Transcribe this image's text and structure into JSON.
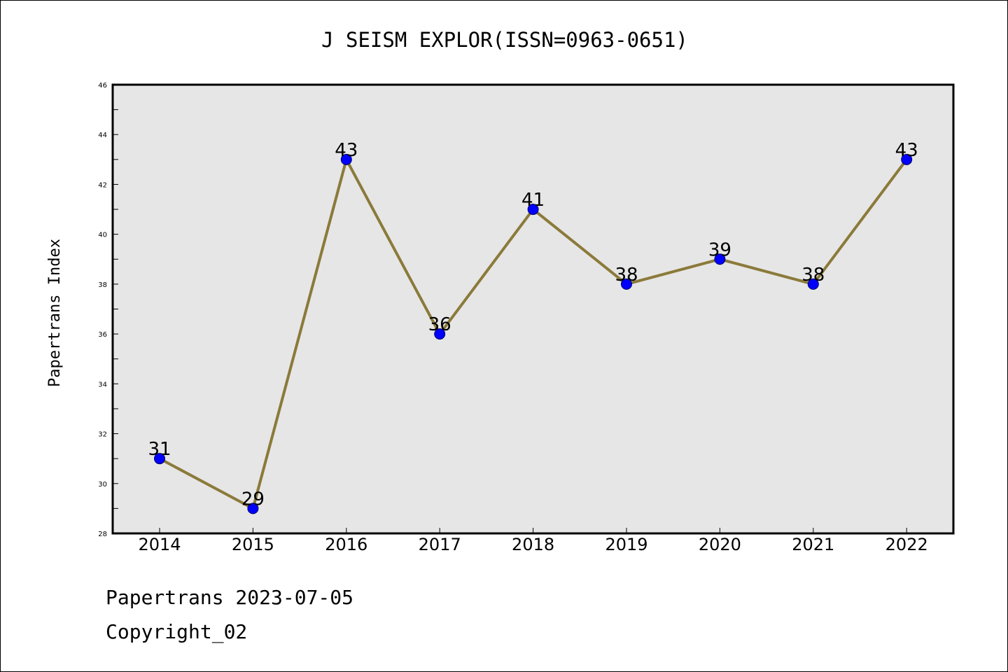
{
  "chart_data": {
    "type": "line",
    "title": "J SEISM EXPLOR(ISSN=0963-0651)",
    "xlabel": "",
    "ylabel": "Papertrans Index",
    "categories": [
      "2014",
      "2015",
      "2016",
      "2017",
      "2018",
      "2019",
      "2020",
      "2021",
      "2022"
    ],
    "values": [
      31,
      29,
      43,
      36,
      41,
      38,
      39,
      38,
      43
    ],
    "data_labels": [
      "31",
      "29",
      "43",
      "36",
      "41",
      "38",
      "39",
      "38",
      "43"
    ],
    "ylim": [
      28,
      46
    ],
    "yticks": [
      "28",
      "30",
      "32",
      "34",
      "36",
      "38",
      "40",
      "42",
      "44",
      "46"
    ],
    "ytick_values": [
      28,
      30,
      32,
      34,
      36,
      38,
      40,
      42,
      44,
      46
    ],
    "grid": false,
    "legend": "none",
    "colors": {
      "line": "#8B7A3A",
      "marker_fill": "#0000FF",
      "marker_stroke": "#000066",
      "plot_background": "#E6E6E6",
      "frame": "#000000"
    }
  },
  "footer": {
    "date_line": "Papertrans 2023-07-05",
    "copyright_line": "Copyright_02"
  }
}
